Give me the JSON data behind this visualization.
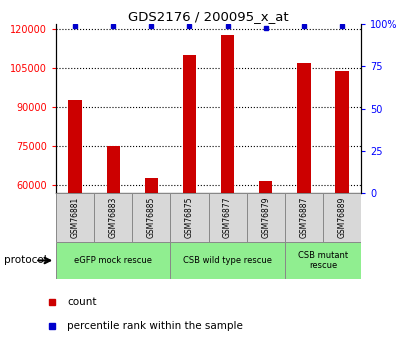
{
  "title": "GDS2176 / 200095_x_at",
  "samples": [
    "GSM76881",
    "GSM76883",
    "GSM76885",
    "GSM76875",
    "GSM76877",
    "GSM76879",
    "GSM76887",
    "GSM76889"
  ],
  "counts": [
    93000,
    75000,
    63000,
    110000,
    118000,
    61500,
    107000,
    104000
  ],
  "percentile_values": [
    99,
    99,
    99,
    99,
    99,
    98,
    99,
    99
  ],
  "ylim_left": [
    57000,
    122000
  ],
  "ylim_right": [
    0,
    100
  ],
  "yticks_left": [
    60000,
    75000,
    90000,
    105000,
    120000
  ],
  "yticks_right": [
    0,
    25,
    50,
    75,
    100
  ],
  "ytick_labels_right": [
    "0",
    "25",
    "50",
    "75",
    "100%"
  ],
  "bar_color": "#cc0000",
  "marker_color": "#0000cc",
  "bar_width": 0.35,
  "sample_box_color": "#d8d8d8",
  "group_box_color": "#90ee90",
  "protocol_label": "protocol",
  "groups": [
    {
      "label": "eGFP mock rescue",
      "start": 0,
      "end": 3
    },
    {
      "label": "CSB wild type rescue",
      "start": 3,
      "end": 6
    },
    {
      "label": "CSB mutant\nrescue",
      "start": 6,
      "end": 8
    }
  ],
  "legend_items": [
    {
      "label": "count",
      "color": "#cc0000"
    },
    {
      "label": "percentile rank within the sample",
      "color": "#0000cc"
    }
  ]
}
